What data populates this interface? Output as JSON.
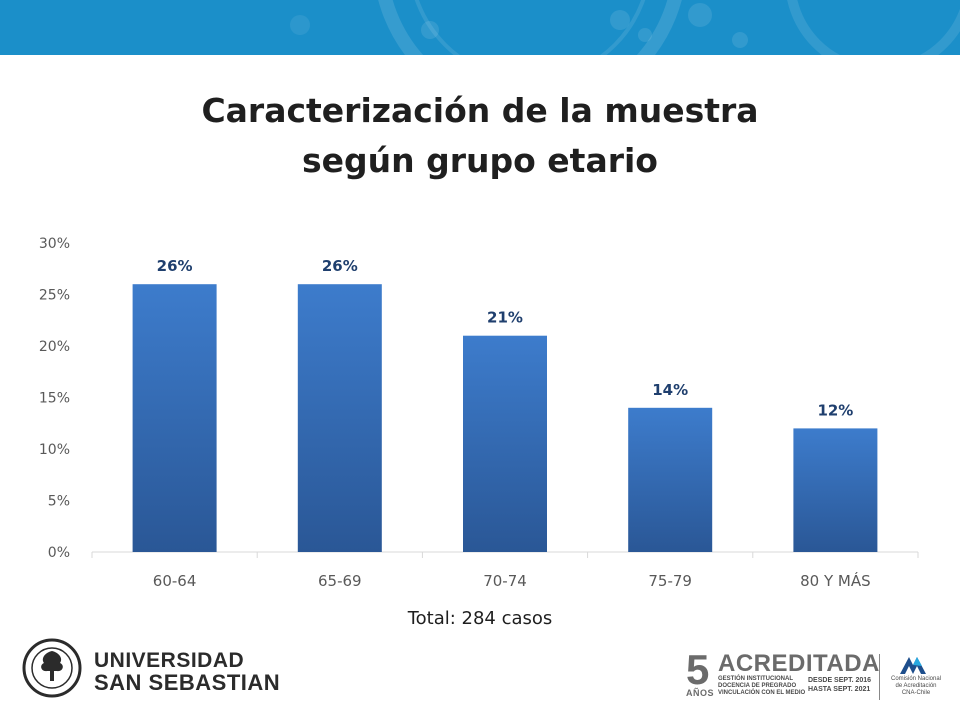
{
  "chart_data": {
    "type": "bar",
    "title": "Caracterización de la muestra según grupo etario",
    "title_lines": [
      "Caracterización de la muestra",
      "según grupo etario"
    ],
    "categories": [
      "60-64",
      "65-69",
      "70-74",
      "75-79",
      "80 Y MÁS"
    ],
    "values": [
      26,
      26,
      21,
      14,
      12
    ],
    "data_labels": [
      "26%",
      "26%",
      "21%",
      "14%",
      "12%"
    ],
    "yticks": [
      "0%",
      "5%",
      "10%",
      "15%",
      "20%",
      "25%",
      "30%"
    ],
    "ylim": [
      0,
      30
    ],
    "xlabel": "",
    "ylabel": "",
    "grid": false,
    "legend": "none",
    "bar_color_top": "#3d7ccc",
    "bar_color_bottom": "#2a5796",
    "label_color": "#1f3f6e"
  },
  "footnote": "Total: 284 casos",
  "logo_left": {
    "line1": "UNIVERSIDAD",
    "line2": "SAN SEBASTIAN"
  },
  "logo_right": {
    "years": "5",
    "years_label": "AÑOS",
    "word": "ACREDITADA",
    "areas": [
      "GESTIÓN INSTITUCIONAL",
      "DOCENCIA DE PREGRADO",
      "VINCULACIÓN CON EL MEDIO"
    ],
    "dates": [
      "DESDE SEPT. 2016",
      "HASTA SEPT. 2021"
    ],
    "agency": [
      "Comisión Nacional",
      "de Acreditación",
      "CNA-Chile"
    ]
  },
  "colors": {
    "banner": "#1b8fc9",
    "axis": "#d9d9d9",
    "text": "#595959"
  }
}
